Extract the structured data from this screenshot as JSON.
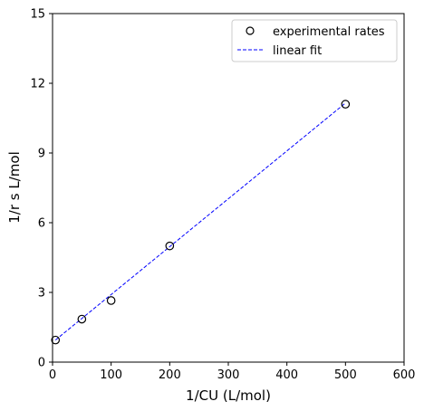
{
  "chart_data": {
    "type": "scatter",
    "xlabel": "1/CU (L/mol)",
    "ylabel": "1/r s L/mol",
    "xlim": [
      0,
      600
    ],
    "ylim": [
      0,
      15
    ],
    "xticks": [
      0,
      100,
      200,
      300,
      400,
      500,
      600
    ],
    "yticks": [
      0,
      3,
      6,
      9,
      12,
      15
    ],
    "grid": false,
    "legend_position": "top-right",
    "series": [
      {
        "name": "experimental rates",
        "kind": "scatter",
        "marker": "open-circle",
        "color": "#000000",
        "x": [
          5,
          50,
          100,
          200,
          500
        ],
        "y": [
          0.95,
          1.85,
          2.65,
          5.0,
          11.1
        ]
      },
      {
        "name": "linear fit",
        "kind": "line",
        "style": "dashed",
        "color": "#0000ff",
        "x": [
          5,
          500
        ],
        "y": [
          0.95,
          11.15
        ]
      }
    ]
  }
}
